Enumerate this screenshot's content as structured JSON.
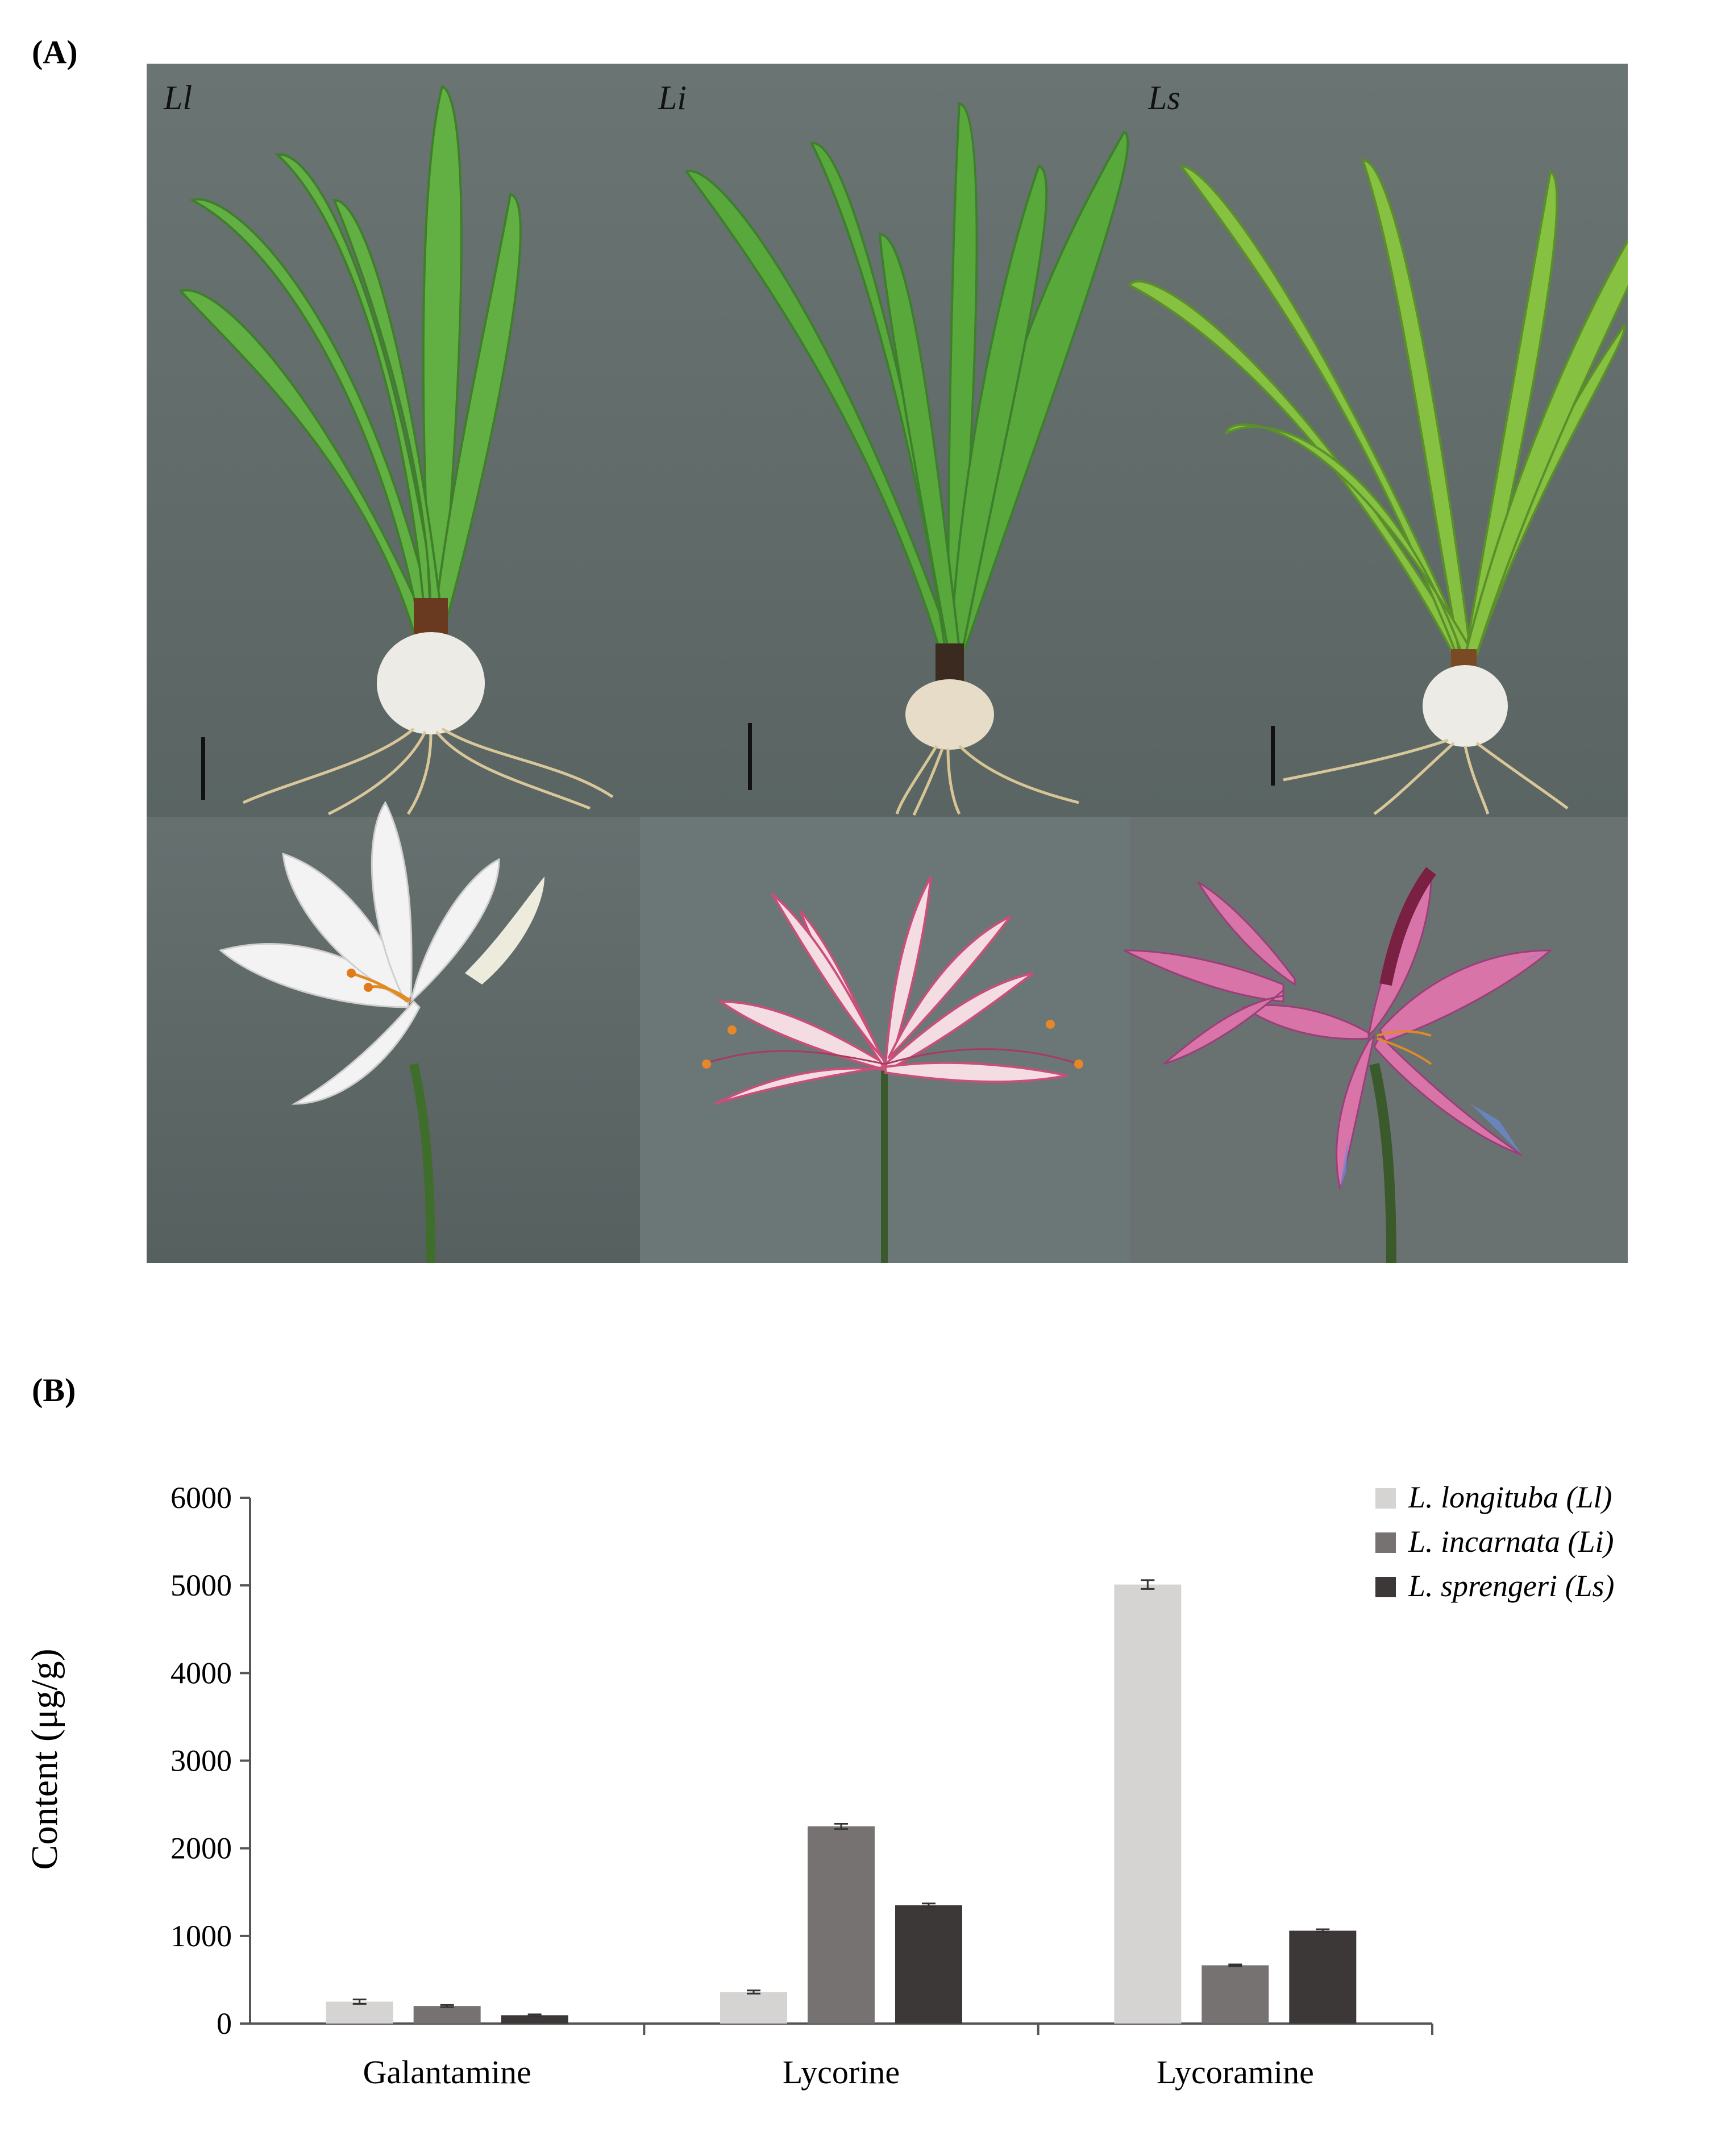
{
  "panels": {
    "a_label": "(A)",
    "b_label": "(B)"
  },
  "photos": {
    "species_tags": [
      "Ll",
      "Li",
      "Ls"
    ],
    "background_color": "#5f6a6a",
    "leaf_color": "#5aa83a",
    "flower_colors": [
      "#f2f2f2",
      "#f0d6dc",
      "#d9709e"
    ]
  },
  "chart_data": {
    "type": "bar",
    "categories": [
      "Galantamine",
      "Lycorine",
      "Lycoramine"
    ],
    "ylabel": "Content (μg/g)",
    "xlabel": "",
    "ylim": [
      0,
      6000
    ],
    "yticks": [
      0,
      1000,
      2000,
      3000,
      4000,
      5000,
      6000
    ],
    "legend_position": "top-right",
    "series": [
      {
        "name": "L. longituba (Ll)",
        "color": "#d6d3d3",
        "values": [
          250,
          360,
          5010
        ],
        "errors": [
          25,
          18,
          50
        ]
      },
      {
        "name": "L. incarnata (Li)",
        "color": "#777272",
        "values": [
          200,
          2250,
          665
        ],
        "errors": [
          12,
          30,
          10
        ]
      },
      {
        "name": "L. sprengeri (Ls)",
        "color": "#3c3837",
        "values": [
          95,
          1350,
          1060
        ],
        "errors": [
          10,
          20,
          16
        ]
      }
    ]
  }
}
